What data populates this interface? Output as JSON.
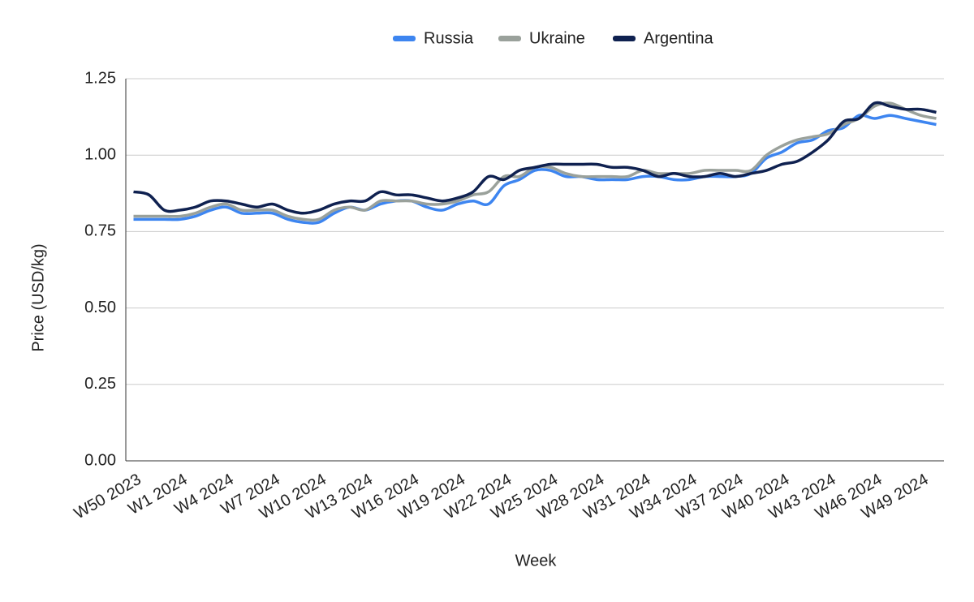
{
  "chart_data": {
    "type": "line",
    "x_label": "Week",
    "y_label": "Price (USD/kg)",
    "categories": [
      "W50 2023",
      null,
      null,
      "W1 2024",
      null,
      null,
      "W4 2024",
      null,
      null,
      "W7 2024",
      null,
      null,
      "W10 2024",
      null,
      null,
      "W13 2024",
      null,
      null,
      "W16 2024",
      null,
      null,
      "W19 2024",
      null,
      null,
      "W22 2024",
      null,
      null,
      "W25 2024",
      null,
      null,
      "W28 2024",
      null,
      null,
      "W31 2024",
      null,
      null,
      "W34 2024",
      null,
      null,
      "W37 2024",
      null,
      null,
      "W40 2024",
      null,
      null,
      "W43 2024",
      null,
      null,
      "W46 2024",
      null,
      null,
      "W49 2024",
      null
    ],
    "series": [
      {
        "name": "Russia",
        "color": "#3d85f0",
        "values": [
          0.79,
          0.79,
          0.79,
          0.79,
          0.8,
          0.82,
          0.83,
          0.81,
          0.81,
          0.81,
          0.79,
          0.78,
          0.78,
          0.81,
          0.83,
          0.82,
          0.84,
          0.85,
          0.85,
          0.83,
          0.82,
          0.84,
          0.85,
          0.84,
          0.9,
          0.92,
          0.95,
          0.95,
          0.93,
          0.93,
          0.92,
          0.92,
          0.92,
          0.93,
          0.93,
          0.92,
          0.92,
          0.93,
          0.93,
          0.93,
          0.94,
          0.99,
          1.01,
          1.04,
          1.05,
          1.08,
          1.09,
          1.13,
          1.12,
          1.13,
          1.12,
          1.11,
          1.1
        ]
      },
      {
        "name": "Ukraine",
        "color": "#9aa19b",
        "values": [
          0.8,
          0.8,
          0.8,
          0.8,
          0.81,
          0.83,
          0.84,
          0.82,
          0.82,
          0.82,
          0.8,
          0.79,
          0.79,
          0.82,
          0.83,
          0.82,
          0.85,
          0.85,
          0.85,
          0.84,
          0.84,
          0.85,
          0.87,
          0.88,
          0.93,
          0.93,
          0.96,
          0.96,
          0.94,
          0.93,
          0.93,
          0.93,
          0.93,
          0.95,
          0.94,
          0.94,
          0.94,
          0.95,
          0.95,
          0.95,
          0.95,
          1.0,
          1.03,
          1.05,
          1.06,
          1.07,
          1.1,
          1.12,
          1.16,
          1.17,
          1.15,
          1.13,
          1.12
        ]
      },
      {
        "name": "Argentina",
        "color": "#0f2150",
        "values": [
          0.88,
          0.87,
          0.82,
          0.82,
          0.83,
          0.85,
          0.85,
          0.84,
          0.83,
          0.84,
          0.82,
          0.81,
          0.82,
          0.84,
          0.85,
          0.85,
          0.88,
          0.87,
          0.87,
          0.86,
          0.85,
          0.86,
          0.88,
          0.93,
          0.92,
          0.95,
          0.96,
          0.97,
          0.97,
          0.97,
          0.97,
          0.96,
          0.96,
          0.95,
          0.93,
          0.94,
          0.93,
          0.93,
          0.94,
          0.93,
          0.94,
          0.95,
          0.97,
          0.98,
          1.01,
          1.05,
          1.11,
          1.12,
          1.17,
          1.16,
          1.15,
          1.15,
          1.14
        ]
      }
    ],
    "ylim": [
      0,
      1.25
    ],
    "yticks": [
      {
        "value": 0,
        "label": "0.00"
      },
      {
        "value": 0.25,
        "label": "0.25"
      },
      {
        "value": 0.5,
        "label": "0.50"
      },
      {
        "value": 0.75,
        "label": "0.75"
      },
      {
        "value": 1,
        "label": "1.00"
      },
      {
        "value": 1.25,
        "label": "1.25"
      }
    ],
    "grid": true,
    "legend": "top"
  }
}
